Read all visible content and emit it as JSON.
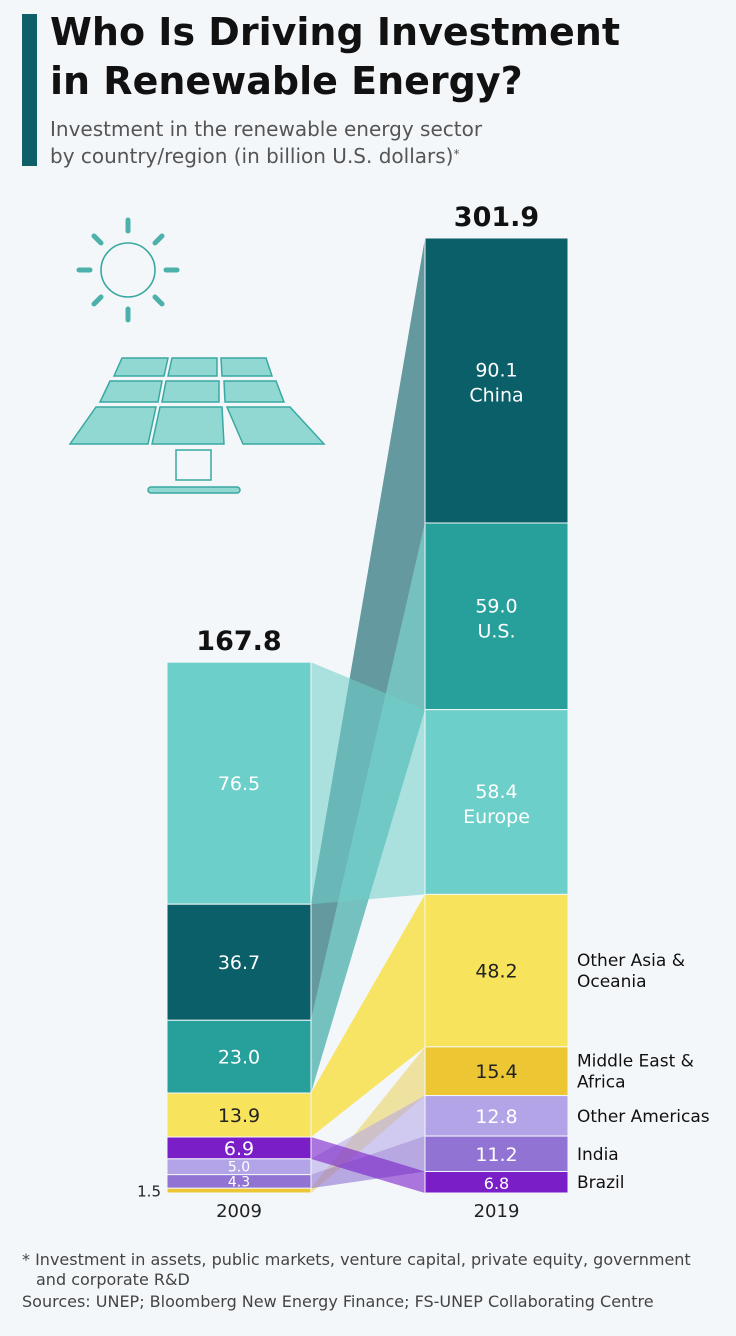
{
  "header": {
    "title_line1": "Who Is Driving Investment",
    "title_line2": "in Renewable Energy?",
    "subtitle_line1": "Investment in the renewable energy sector",
    "subtitle_line2": "by country/region (in billion U.S. dollars)",
    "subtitle_marker": "*"
  },
  "icons": [
    "sun-icon",
    "solar-panel-icon"
  ],
  "colors": {
    "accent": "#0e5f68",
    "China": "#0b5f68",
    "U.S.": "#27a09c",
    "Europe": "#6dcfc9",
    "Other Asia & Oceania": "#f8e35c",
    "Middle East & Africa": "#ecc733",
    "Other Americas": "#b3a4e8",
    "India": "#9073d2",
    "Brazil": "#7a1ec8"
  },
  "chart_data": {
    "type": "bar",
    "stacked": true,
    "categories": [
      "2009",
      "2019"
    ],
    "totals": [
      "167.8",
      "301.9"
    ],
    "series": [
      {
        "name": "China",
        "values": [
          36.7,
          90.1
        ]
      },
      {
        "name": "U.S.",
        "values": [
          23.0,
          59.0
        ]
      },
      {
        "name": "Europe",
        "values": [
          76.5,
          58.4
        ]
      },
      {
        "name": "Other Asia & Oceania",
        "values": [
          13.9,
          48.2
        ]
      },
      {
        "name": "Middle East & Africa",
        "values": [
          1.5,
          15.4
        ]
      },
      {
        "name": "Other Americas",
        "values": [
          5.0,
          12.8
        ]
      },
      {
        "name": "India",
        "values": [
          4.3,
          11.2
        ]
      },
      {
        "name": "Brazil",
        "values": [
          6.9,
          6.8
        ]
      }
    ],
    "stack_order_2009": [
      "Europe",
      "China",
      "U.S.",
      "Other Asia & Oceania",
      "Brazil",
      "Other Americas",
      "India",
      "Middle East & Africa"
    ],
    "stack_order_2019": [
      "China",
      "U.S.",
      "Europe",
      "Other Asia & Oceania",
      "Middle East & Africa",
      "Other Americas",
      "India",
      "Brazil"
    ],
    "labels_2019": [
      {
        "series": "China",
        "value": "90.1",
        "name": "China"
      },
      {
        "series": "U.S.",
        "value": "59.0",
        "name": "U.S."
      },
      {
        "series": "Europe",
        "value": "58.4",
        "name": "Europe"
      },
      {
        "series": "Other Asia & Oceania",
        "value": "48.2",
        "name": ""
      },
      {
        "series": "Middle East & Africa",
        "value": "15.4",
        "name": ""
      },
      {
        "series": "Other Americas",
        "value": "12.8",
        "name": ""
      },
      {
        "series": "India",
        "value": "11.2",
        "name": ""
      },
      {
        "series": "Brazil",
        "value": "6.8",
        "name": ""
      }
    ],
    "labels_2009": [
      {
        "series": "Europe",
        "value": "76.5"
      },
      {
        "series": "China",
        "value": "36.7"
      },
      {
        "series": "U.S.",
        "value": "23.0"
      },
      {
        "series": "Other Asia & Oceania",
        "value": "13.9"
      },
      {
        "series": "Brazil",
        "value": "6.9"
      },
      {
        "series": "Other Americas",
        "value": "5.0"
      },
      {
        "series": "India",
        "value": "4.3"
      },
      {
        "series": "Middle East & Africa",
        "value": "1.5"
      }
    ],
    "legend": [
      {
        "series": "Other Asia & Oceania",
        "lines": [
          "Other Asia &",
          "Oceania"
        ]
      },
      {
        "series": "Middle East & Africa",
        "lines": [
          "Middle East &",
          "Africa"
        ]
      },
      {
        "series": "Other Americas",
        "lines": [
          "Other Americas"
        ]
      },
      {
        "series": "India",
        "lines": [
          "India"
        ]
      },
      {
        "series": "Brazil",
        "lines": [
          "Brazil"
        ]
      }
    ]
  },
  "footer": {
    "note": "* Investment in assets, public markets, venture capital, private equity, government and corporate R&D",
    "sources": "Sources: UNEP; Bloomberg New Energy Finance; FS-UNEP Collaborating Centre"
  }
}
